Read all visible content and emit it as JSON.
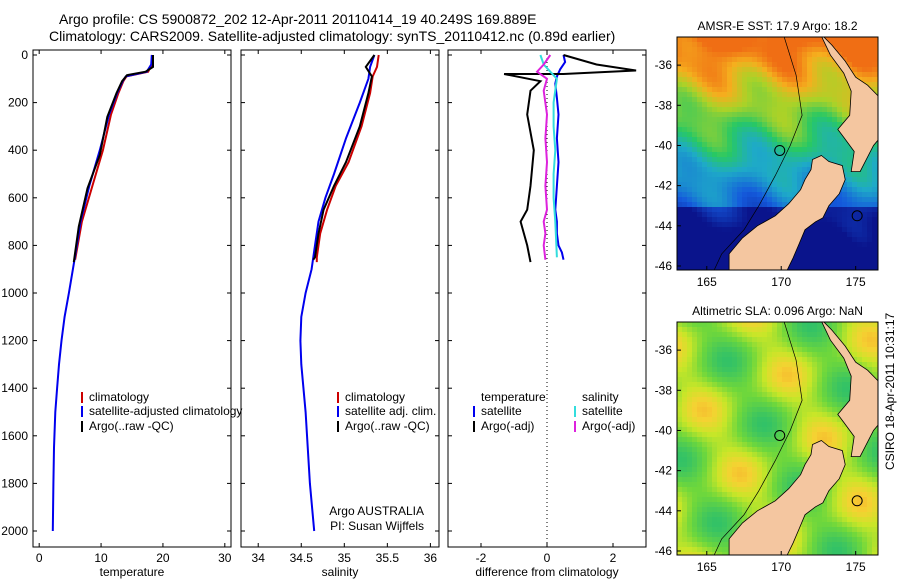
{
  "header": {
    "line1": "Argo profile: CS 5900872_202 12-Apr-2011 20110414_19 40.249S 169.889E",
    "line2": "Climatology: CARS2009. Satellite-adjusted climatology: synTS_20110412.nc (0.89d earlier)"
  },
  "colors": {
    "red": "#cc0000",
    "blue": "#0000ee",
    "black": "#000000",
    "cyan": "#33dddd",
    "magenta": "#dd22dd",
    "land": "#f4c6a0"
  },
  "chart_data": [
    {
      "type": "line",
      "id": "temperature",
      "xlabel": "temperature",
      "ylabel": "",
      "xlim": [
        -1,
        31
      ],
      "ylim": [
        2050,
        0
      ],
      "xticks": [
        "0",
        "10",
        "20",
        "30"
      ],
      "yticks": [
        "0",
        "200",
        "400",
        "600",
        "800",
        "1000",
        "1200",
        "1400",
        "1600",
        "1800",
        "2000"
      ],
      "legend": [
        "climatology",
        "satellite-adjusted climatology",
        "Argo(..raw -QC)"
      ],
      "series": [
        {
          "name": "climatology",
          "color": "red",
          "x": [
            18.3,
            18.2,
            17.6,
            14.1,
            13.6,
            12.8,
            11.6,
            10.3,
            8.6,
            6.9,
            5.8
          ],
          "y": [
            0,
            40,
            70,
            90,
            110,
            160,
            250,
            400,
            550,
            700,
            860
          ]
        },
        {
          "name": "satellite-adjusted climatology",
          "color": "blue",
          "x": [
            18.2,
            18.1,
            17.4,
            14,
            13.5,
            12.6,
            11.3,
            9.8,
            8.1,
            6.7,
            5.7,
            4.8,
            4.1,
            3.6,
            3.2,
            2.9,
            2.6,
            2.4,
            2.3,
            2.2
          ],
          "y": [
            0,
            40,
            70,
            90,
            110,
            160,
            250,
            400,
            550,
            700,
            860,
            1000,
            1100,
            1200,
            1300,
            1400,
            1500,
            1650,
            1800,
            2000
          ]
        },
        {
          "name": "Argo(..raw -QC)",
          "color": "black",
          "x": [
            18.4,
            18.4,
            17.2,
            14.2,
            13.4,
            12.5,
            11,
            9.8,
            7.8,
            6.4,
            5.6
          ],
          "y": [
            0,
            50,
            70,
            85,
            110,
            160,
            260,
            420,
            560,
            720,
            870
          ]
        }
      ]
    },
    {
      "type": "line",
      "id": "salinity",
      "xlabel": "salinity",
      "ylabel": "",
      "xlim": [
        33.8,
        36.1
      ],
      "ylim": [
        2050,
        0
      ],
      "xticks": [
        "34",
        "34.5",
        "35",
        "35.5",
        "36"
      ],
      "yticks": [],
      "legend": [
        "climatology",
        "satellite adj. clim.",
        "Argo(..raw -QC)"
      ],
      "annotations": [
        "Argo AUSTRALIA",
        "PI: Susan Wijffels"
      ],
      "series": [
        {
          "name": "climatology",
          "color": "red",
          "x": [
            35.4,
            35.38,
            35.33,
            35.3,
            35.2,
            35.05,
            34.9,
            34.8,
            34.72,
            34.68,
            34.68
          ],
          "y": [
            0,
            50,
            90,
            160,
            300,
            450,
            550,
            650,
            750,
            850,
            870
          ]
        },
        {
          "name": "satellite adj. clim.",
          "color": "blue",
          "x": [
            35.35,
            35.3,
            35.28,
            35.18,
            35.02,
            34.88,
            34.78,
            34.7,
            34.66,
            34.62,
            34.55,
            34.5,
            34.49,
            34.5,
            34.55,
            34.6,
            34.65
          ],
          "y": [
            0,
            50,
            100,
            200,
            350,
            500,
            600,
            700,
            800,
            900,
            1000,
            1100,
            1200,
            1300,
            1500,
            1800,
            2000
          ]
        },
        {
          "name": "Argo(..raw -QC)",
          "color": "black",
          "x": [
            35.35,
            35.25,
            35.32,
            35.28,
            35.18,
            35.02,
            34.88,
            34.76,
            34.7,
            34.66,
            34.64
          ],
          "y": [
            0,
            50,
            90,
            160,
            300,
            450,
            550,
            650,
            750,
            850,
            860
          ]
        }
      ]
    },
    {
      "type": "line",
      "id": "difference",
      "xlabel": "difference from climatology",
      "ylabel": "",
      "xlim": [
        -3,
        3
      ],
      "ylim": [
        2050,
        0
      ],
      "xticks": [
        "-2",
        "0",
        "2"
      ],
      "yticks": [],
      "legend_left_title": "temperature",
      "legend_right_title": "salinity",
      "legend": [
        "satellite",
        "Argo(-adj)",
        "satellite",
        "Argo(-adj)"
      ],
      "series": [
        {
          "name": "temperature satellite",
          "color": "blue",
          "x": [
            0.5,
            0.55,
            0.4,
            0.3,
            0.25,
            0.3,
            0.35,
            0.3,
            0.35,
            0.3,
            0.25,
            0.3,
            0.3,
            0.35,
            0.45,
            0.5
          ],
          "y": [
            0,
            30,
            60,
            90,
            120,
            180,
            250,
            350,
            450,
            550,
            650,
            700,
            750,
            800,
            830,
            860
          ]
        },
        {
          "name": "temperature Argo(-adj)",
          "color": "black",
          "x": [
            0.5,
            1.5,
            2.7,
            0.5,
            -1.3,
            -0.2,
            -0.5,
            -0.6,
            -0.4,
            -0.5,
            -0.6,
            -0.8,
            -0.7,
            -0.6,
            -0.5
          ],
          "y": [
            0,
            40,
            65,
            80,
            80,
            110,
            150,
            250,
            400,
            550,
            650,
            700,
            750,
            800,
            870
          ]
        },
        {
          "name": "salinity satellite",
          "color": "cyan",
          "x": [
            -0.2,
            -0.1,
            0.1,
            0.3,
            0.2,
            0.2,
            0.25,
            0.2,
            0.2,
            0.25,
            0.3
          ],
          "y": [
            0,
            40,
            70,
            100,
            200,
            300,
            400,
            500,
            600,
            700,
            850
          ]
        },
        {
          "name": "salinity Argo(-adj)",
          "color": "magenta",
          "x": [
            0.1,
            -0.1,
            -0.3,
            0.0,
            -0.1,
            0.0,
            -0.05,
            0.0,
            -0.05,
            0.0,
            -0.1,
            -0.05,
            -0.1,
            -0.05
          ],
          "y": [
            0,
            40,
            70,
            100,
            150,
            250,
            350,
            450,
            550,
            650,
            700,
            750,
            800,
            860
          ]
        }
      ],
      "reference_line_x": 0
    },
    {
      "type": "heatmap",
      "id": "sst-map",
      "title": "AMSR-E SST: 17.9 Argo: 18.2",
      "xticks": [
        "165",
        "170",
        "175"
      ],
      "yticks": [
        "-36",
        "-38",
        "-40",
        "-42",
        "-44",
        "-46"
      ],
      "xlim": [
        163,
        176.5
      ],
      "ylim": [
        -46.2,
        -34.6
      ],
      "markers": [
        [
          169.9,
          -40.25
        ],
        [
          175.1,
          -43.5
        ]
      ]
    },
    {
      "type": "heatmap",
      "id": "sla-map",
      "title": "Altimetric SLA: 0.096 Argo: NaN",
      "xticks": [
        "165",
        "170",
        "175"
      ],
      "yticks": [
        "-36",
        "-38",
        "-40",
        "-42",
        "-44",
        "-46"
      ],
      "xlim": [
        163,
        176.5
      ],
      "ylim": [
        -46.2,
        -34.6
      ],
      "markers": [
        [
          169.9,
          -40.25
        ],
        [
          175.1,
          -43.5
        ]
      ]
    }
  ],
  "side_label": "CSIRO 18-Apr-2011 10:31:17"
}
